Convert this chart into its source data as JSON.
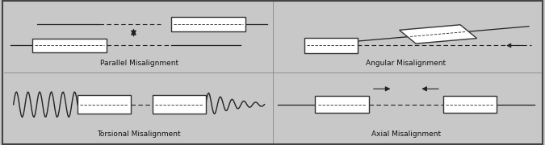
{
  "bg_color": "#c8c8c8",
  "border_color": "#444444",
  "line_color": "#222222",
  "box_edge_color": "#333333",
  "box_color": "#ffffff",
  "titles": {
    "parallel": "Parallel Misalignment",
    "angular": "Angular Misalignment",
    "torsional": "Torsional Misalignment",
    "axial": "Axial Misalignment"
  },
  "font_size": 6.5,
  "divider_color": "#888888"
}
